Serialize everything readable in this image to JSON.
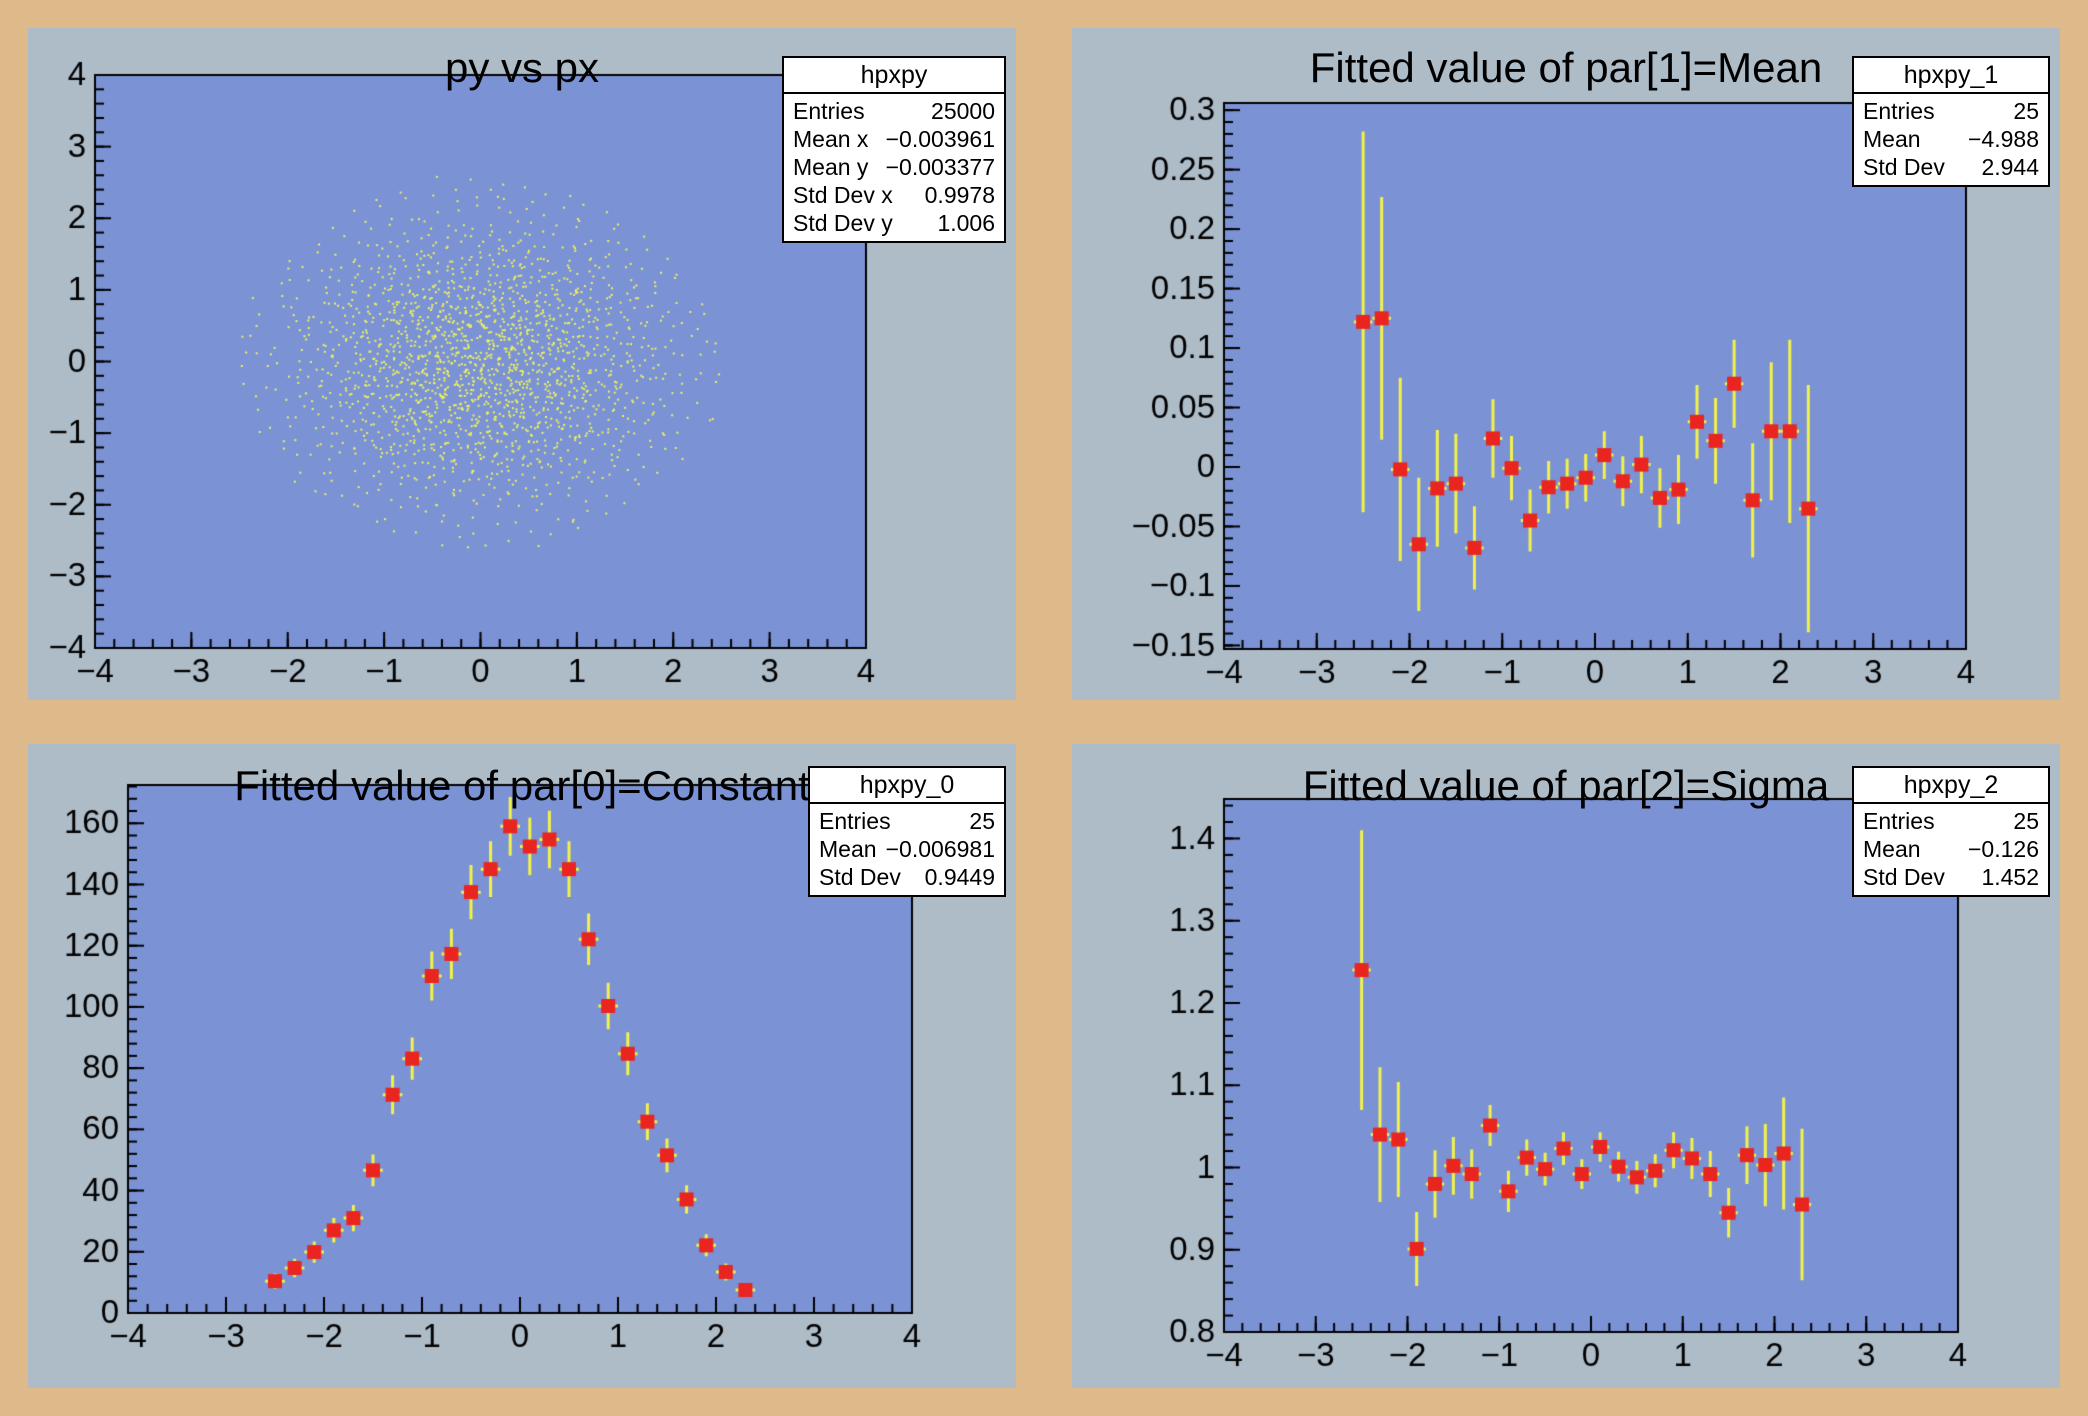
{
  "palette": {
    "canvas_background": "#deba8b",
    "pad_background": "#aebcc8",
    "frame_background": "#7b92d5",
    "axis_color": "#000000",
    "marker_color": "#ea241f",
    "error_bar_color": "#f2f24a",
    "scatter_dot_color": "#eef35c",
    "stats_background": "#ffffff",
    "text_color": "#000000"
  },
  "pads": [
    {
      "title": "py vs px",
      "stats": {
        "title": "hpxpy",
        "rows": [
          {
            "label": "Entries",
            "value": "25000"
          },
          {
            "label": "Mean x",
            "value": "−0.003961"
          },
          {
            "label": "Mean y",
            "value": "−0.003377"
          },
          {
            "label": "Std Dev x",
            "value": "0.9978"
          },
          {
            "label": "Std Dev y",
            "value": "1.006"
          }
        ]
      }
    },
    {
      "title": "Fitted value of par[1]=Mean",
      "stats": {
        "title": "hpxpy_1",
        "rows": [
          {
            "label": "Entries",
            "value": "25"
          },
          {
            "label": "Mean",
            "value": "−4.988"
          },
          {
            "label": "Std Dev",
            "value": "2.944"
          }
        ]
      }
    },
    {
      "title": "Fitted value of par[0]=Constant",
      "stats": {
        "title": "hpxpy_0",
        "rows": [
          {
            "label": "Entries",
            "value": "25"
          },
          {
            "label": "Mean",
            "value": "−0.006981"
          },
          {
            "label": "Std Dev",
            "value": "0.9449"
          }
        ]
      }
    },
    {
      "title": "Fitted value of par[2]=Sigma",
      "stats": {
        "title": "hpxpy_2",
        "rows": [
          {
            "label": "Entries",
            "value": "25"
          },
          {
            "label": "Mean",
            "value": "−0.126"
          },
          {
            "label": "Std Dev",
            "value": "1.452"
          }
        ]
      }
    }
  ],
  "chart_data": [
    {
      "type": "scatter",
      "subtype": "2d-histogram-dot-scatter",
      "title": "py vs px",
      "xlim": [
        -4,
        4
      ],
      "ylim": [
        -4,
        4
      ],
      "x_ticks": [
        -4,
        -3,
        -2,
        -1,
        0,
        1,
        2,
        3,
        4
      ],
      "x_tick_labels": [
        "−4",
        "−3",
        "−2",
        "−1",
        "0",
        "1",
        "2",
        "3",
        "4"
      ],
      "y_ticks": [
        4,
        3,
        2,
        1,
        0,
        -1,
        -2,
        -3,
        -4
      ],
      "y_tick_labels": [
        "4",
        "3",
        "2",
        "1",
        "0",
        "−1",
        "−2",
        "−3",
        "−4"
      ],
      "x_minor_step": 0.2,
      "y_minor_step": 0.2,
      "distribution": {
        "entries": 25000,
        "mean_x": -0.003961,
        "mean_y": -0.003377,
        "std_dev_x": 0.9978,
        "std_dev_y": 1.006,
        "bins_x": 40,
        "bins_y": 40
      }
    },
    {
      "type": "scatter",
      "error_bars": true,
      "title": "Fitted value of par[1]=Mean",
      "xlim": [
        -4,
        4
      ],
      "ylim": [
        -0.153,
        0.306
      ],
      "x_ticks": [
        -4,
        -3,
        -2,
        -1,
        0,
        1,
        2,
        3,
        4
      ],
      "x_tick_labels": [
        "−4",
        "−3",
        "−2",
        "−1",
        "0",
        "1",
        "2",
        "3",
        "4"
      ],
      "y_ticks": [
        0.3,
        0.25,
        0.2,
        0.15,
        0.1,
        0.05,
        0,
        -0.05,
        -0.1,
        -0.15
      ],
      "y_tick_labels": [
        "0.3",
        "0.25",
        "0.2",
        "0.15",
        "0.1",
        "0.05",
        "0",
        "−0.05",
        "−0.1",
        "−0.15"
      ],
      "x_minor_step": 0.2,
      "y_minor_step": 0.01,
      "xerr": 0.1,
      "x": [
        -2.5,
        -2.3,
        -2.1,
        -1.9,
        -1.7,
        -1.5,
        -1.3,
        -1.1,
        -0.9,
        -0.7,
        -0.5,
        -0.3,
        -0.1,
        0.1,
        0.3,
        0.5,
        0.7,
        0.9,
        1.1,
        1.3,
        1.5,
        1.7,
        1.9,
        2.1,
        2.3
      ],
      "y": [
        0.122,
        0.125,
        -0.002,
        -0.065,
        -0.018,
        -0.014,
        -0.068,
        0.024,
        -0.001,
        -0.045,
        -0.017,
        -0.014,
        -0.009,
        0.01,
        -0.012,
        0.002,
        -0.026,
        -0.019,
        0.038,
        0.022,
        0.07,
        -0.028,
        0.03,
        0.03,
        -0.035
      ],
      "yerr": [
        0.16,
        0.102,
        0.077,
        0.056,
        0.049,
        0.042,
        0.035,
        0.033,
        0.027,
        0.026,
        0.022,
        0.021,
        0.02,
        0.02,
        0.021,
        0.024,
        0.025,
        0.029,
        0.031,
        0.036,
        0.037,
        0.048,
        0.058,
        0.077,
        0.104
      ]
    },
    {
      "type": "scatter",
      "error_bars": true,
      "title": "Fitted value of par[0]=Constant",
      "xlim": [
        -4,
        4
      ],
      "ylim": [
        0,
        172.5
      ],
      "x_ticks": [
        -4,
        -3,
        -2,
        -1,
        0,
        1,
        2,
        3,
        4
      ],
      "x_tick_labels": [
        "−4",
        "−3",
        "−2",
        "−1",
        "0",
        "1",
        "2",
        "3",
        "4"
      ],
      "y_ticks": [
        0,
        20,
        40,
        60,
        80,
        100,
        120,
        140,
        160
      ],
      "y_tick_labels": [
        "0",
        "20",
        "40",
        "60",
        "80",
        "100",
        "120",
        "140",
        "160"
      ],
      "x_minor_step": 0.2,
      "y_minor_step": 4,
      "xerr": 0.1,
      "x": [
        -2.5,
        -2.3,
        -2.1,
        -1.9,
        -1.7,
        -1.5,
        -1.3,
        -1.1,
        -0.9,
        -0.7,
        -0.5,
        -0.3,
        -0.1,
        0.1,
        0.3,
        0.5,
        0.7,
        0.9,
        1.1,
        1.3,
        1.5,
        1.7,
        1.9,
        2.1,
        2.3
      ],
      "y": [
        10.4,
        14.7,
        19.9,
        27.0,
        31.0,
        46.6,
        71.3,
        83.1,
        110.1,
        117.3,
        137.5,
        145.0,
        159.0,
        152.4,
        154.7,
        145.0,
        122.1,
        100.3,
        84.7,
        62.5,
        51.5,
        37.1,
        22.1,
        13.4,
        7.5
      ],
      "yerr": [
        2.5,
        3.0,
        3.5,
        4.0,
        4.3,
        5.2,
        6.4,
        6.9,
        8.0,
        8.2,
        8.9,
        9.1,
        9.6,
        9.4,
        9.4,
        9.1,
        8.4,
        7.6,
        7.0,
        6.0,
        5.5,
        4.6,
        3.6,
        2.8,
        2.1
      ]
    },
    {
      "type": "scatter",
      "error_bars": true,
      "title": "Fitted value of par[2]=Sigma",
      "xlim": [
        -4,
        4
      ],
      "ylim": [
        0.8,
        1.448
      ],
      "x_ticks": [
        -4,
        -3,
        -2,
        -1,
        0,
        1,
        2,
        3,
        4
      ],
      "x_tick_labels": [
        "−4",
        "−3",
        "−2",
        "−1",
        "0",
        "1",
        "2",
        "3",
        "4"
      ],
      "y_ticks": [
        0.8,
        0.9,
        1,
        1.1,
        1.2,
        1.3,
        1.4
      ],
      "y_tick_labels": [
        "0.8",
        "0.9",
        "1",
        "1.1",
        "1.2",
        "1.3",
        "1.4"
      ],
      "x_minor_step": 0.2,
      "y_minor_step": 0.02,
      "xerr": 0.1,
      "x": [
        -2.5,
        -2.3,
        -2.1,
        -1.9,
        -1.7,
        -1.5,
        -1.3,
        -1.1,
        -0.9,
        -0.7,
        -0.5,
        -0.3,
        -0.1,
        0.1,
        0.3,
        0.5,
        0.7,
        0.9,
        1.1,
        1.3,
        1.5,
        1.7,
        1.9,
        2.1,
        2.3
      ],
      "y": [
        1.24,
        1.04,
        1.034,
        0.901,
        0.98,
        1.002,
        0.992,
        1.051,
        0.971,
        1.012,
        0.998,
        1.023,
        0.992,
        1.025,
        1.001,
        0.988,
        0.996,
        1.021,
        1.011,
        0.992,
        0.945,
        1.015,
        1.003,
        1.017,
        0.955
      ],
      "yerr": [
        0.17,
        0.082,
        0.07,
        0.045,
        0.041,
        0.035,
        0.03,
        0.025,
        0.025,
        0.022,
        0.02,
        0.02,
        0.018,
        0.018,
        0.018,
        0.02,
        0.02,
        0.022,
        0.025,
        0.028,
        0.03,
        0.035,
        0.05,
        0.068,
        0.092
      ]
    }
  ]
}
